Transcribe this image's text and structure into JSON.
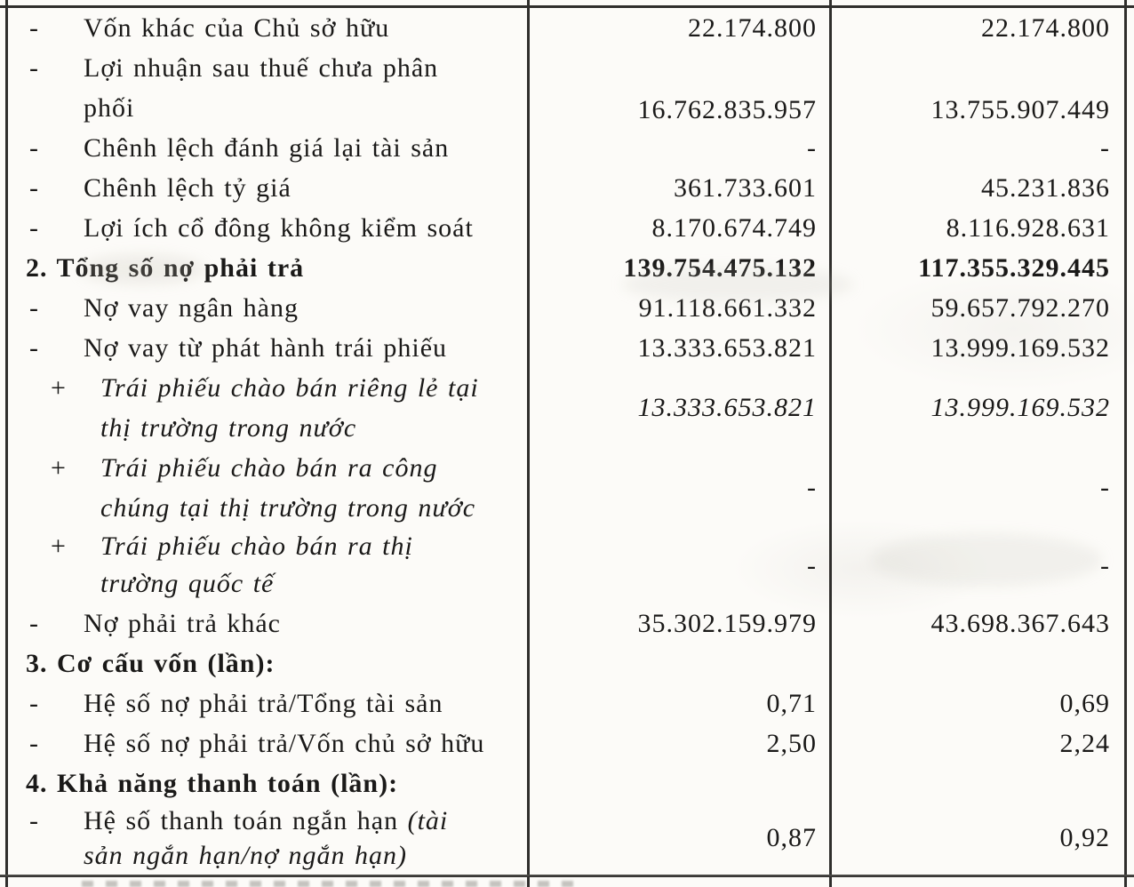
{
  "document": {
    "language": "Vietnamese",
    "kind_note": "scanned balance-sheet indicator table fragment"
  },
  "colors": {
    "ink": "#1a1918",
    "border": "#2f2e2c",
    "paper": "#fcfbf8"
  },
  "table": {
    "rows": [
      {
        "marker": "-",
        "bold": false,
        "italic": false,
        "lines": [
          [
            {
              "text": "Vốn khác của Chủ sở hữu"
            }
          ]
        ],
        "v1": "22.174.800",
        "v2": "22.174.800"
      },
      {
        "marker": "-",
        "bold": false,
        "italic": false,
        "lines": [
          [
            {
              "text": "Lợi nhuận sau thuế chưa phân"
            }
          ],
          [
            {
              "text": "phối"
            }
          ]
        ],
        "v1": "16.762.835.957",
        "v2": "13.755.907.449"
      },
      {
        "marker": "-",
        "bold": false,
        "italic": false,
        "lines": [
          [
            {
              "text": "Chênh lệch đánh giá lại tài sản"
            }
          ]
        ],
        "v1": "-",
        "v2": "-"
      },
      {
        "marker": "-",
        "bold": false,
        "italic": false,
        "lines": [
          [
            {
              "text": "Chênh lệch tỷ giá"
            }
          ]
        ],
        "v1": "361.733.601",
        "v2": "45.231.836"
      },
      {
        "marker": "-",
        "bold": false,
        "italic": false,
        "lines": [
          [
            {
              "text": "Lợi ích cổ đông không kiểm soát"
            }
          ]
        ],
        "v1": "8.170.674.749",
        "v2": "8.116.928.631"
      },
      {
        "marker": "",
        "bold": true,
        "italic": false,
        "lines": [
          [
            {
              "text": "2. Tổng số nợ phải trả"
            }
          ]
        ],
        "v1": "139.754.475.132",
        "v2": "117.355.329.445"
      },
      {
        "marker": "-",
        "bold": false,
        "italic": false,
        "lines": [
          [
            {
              "text": "Nợ vay ngân hàng"
            }
          ]
        ],
        "v1": "91.118.661.332",
        "v2": "59.657.792.270"
      },
      {
        "marker": "-",
        "bold": false,
        "italic": false,
        "lines": [
          [
            {
              "text": "Nợ vay từ phát hành trái phiếu"
            }
          ]
        ],
        "v1": "13.333.653.821",
        "v2": "13.999.169.532"
      },
      {
        "marker": "+",
        "bold": false,
        "italic": true,
        "lines": [
          [
            {
              "text": "Trái phiếu chào bán riêng lẻ tại"
            }
          ],
          [
            {
              "text": "thị trường trong nước"
            }
          ]
        ],
        "v1": "13.333.653.821",
        "v2": "13.999.169.532"
      },
      {
        "marker": "+",
        "bold": false,
        "italic": true,
        "lines": [
          [
            {
              "text": "Trái phiếu chào bán ra công"
            }
          ],
          [
            {
              "text": "chúng tại thị trường trong nước"
            }
          ]
        ],
        "v1": "-",
        "v2": "-"
      },
      {
        "marker": "+",
        "bold": false,
        "italic": true,
        "lines": [
          [
            {
              "text": "Trái phiếu chào bán ra thị"
            }
          ],
          [
            {
              "text": "trường quốc tế"
            }
          ]
        ],
        "v1": "-",
        "v2": "-"
      },
      {
        "marker": "-",
        "bold": false,
        "italic": false,
        "lines": [
          [
            {
              "text": "Nợ phải trả khác"
            }
          ]
        ],
        "v1": "35.302.159.979",
        "v2": "43.698.367.643"
      },
      {
        "marker": "",
        "bold": true,
        "italic": false,
        "lines": [
          [
            {
              "text": "3. Cơ cấu vốn (lần):"
            }
          ]
        ],
        "v1": "",
        "v2": ""
      },
      {
        "marker": "-",
        "bold": false,
        "italic": false,
        "lines": [
          [
            {
              "text": "Hệ số nợ phải trả/Tổng tài sản"
            }
          ]
        ],
        "v1": "0,71",
        "v2": "0,69"
      },
      {
        "marker": "-",
        "bold": false,
        "italic": false,
        "lines": [
          [
            {
              "text": "Hệ số nợ phải trả/Vốn chủ sở hữu"
            }
          ]
        ],
        "v1": "2,50",
        "v2": "2,24"
      },
      {
        "marker": "",
        "bold": true,
        "italic": false,
        "lines": [
          [
            {
              "text": "4. Khả năng thanh toán (lần):"
            }
          ]
        ],
        "v1": "",
        "v2": ""
      },
      {
        "marker": "-",
        "bold": false,
        "italic": false,
        "lines": [
          [
            {
              "text": "Hệ số thanh toán ngắn hạn "
            },
            {
              "text": "(tài",
              "italic": true
            }
          ],
          [
            {
              "text": "sản ngắn hạn/nợ ngắn hạn)",
              "italic": true
            }
          ]
        ],
        "v1": "0,87",
        "v2": "0,92"
      }
    ]
  }
}
